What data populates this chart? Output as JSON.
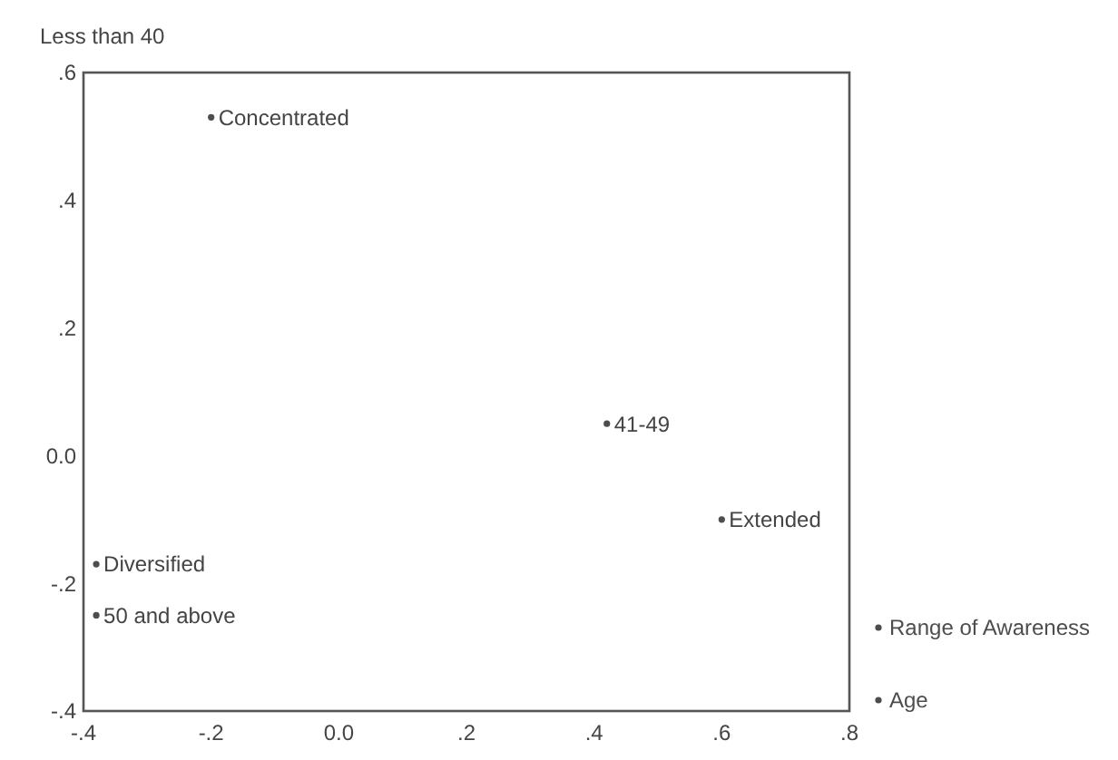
{
  "chart_data": {
    "type": "scatter",
    "marker": "circle",
    "legend": "bottom right",
    "xlim": [
      -0.4,
      0.8
    ],
    "ylim": [
      -0.4,
      0.6
    ],
    "xticks": [
      {
        "value": -0.4,
        "label": "-.4"
      },
      {
        "value": -0.2,
        "label": "-.2"
      },
      {
        "value": 0,
        "label": "0.0"
      },
      {
        "value": 0.2,
        "label": ".2"
      },
      {
        "value": 0.4,
        "label": ".4"
      },
      {
        "value": 0.6,
        "label": ".6"
      },
      {
        "value": 0.8,
        "label": ".8"
      }
    ],
    "yticks": [
      {
        "value": -0.4,
        "label": "-.4"
      },
      {
        "value": -0.2,
        "label": "-.2"
      },
      {
        "value": 0,
        "label": "0.0"
      },
      {
        "value": 0.2,
        "label": ".2"
      },
      {
        "value": 0.4,
        "label": ".4"
      },
      {
        "value": 0.6,
        "label": ".6"
      }
    ],
    "annotations": [
      "Less than 40",
      {
        "text": "Concentrated",
        "x": -0.2,
        "y": 0.53
      },
      {
        "text": "Diversified",
        "x": -0.38,
        "y": -0.17
      },
      {
        "text": "Extended",
        "x": 0.6,
        "y": -0.1
      },
      {
        "text": "41-49",
        "x": 0.42,
        "y": 0.05
      },
      {
        "text": "50 and above",
        "x": -0.38,
        "y": -0.25
      }
    ],
    "series": [
      {
        "name": "Range of Awareness",
        "color": "#4d4d4d",
        "x": [
          -0.2,
          -0.38,
          0.6
        ],
        "values": [
          0.53,
          -0.17,
          -0.1
        ]
      },
      {
        "name": "Age",
        "color": "#4d4d4d",
        "x": [
          0.42,
          -0.38
        ],
        "values": [
          0.05,
          -0.25
        ]
      }
    ]
  }
}
